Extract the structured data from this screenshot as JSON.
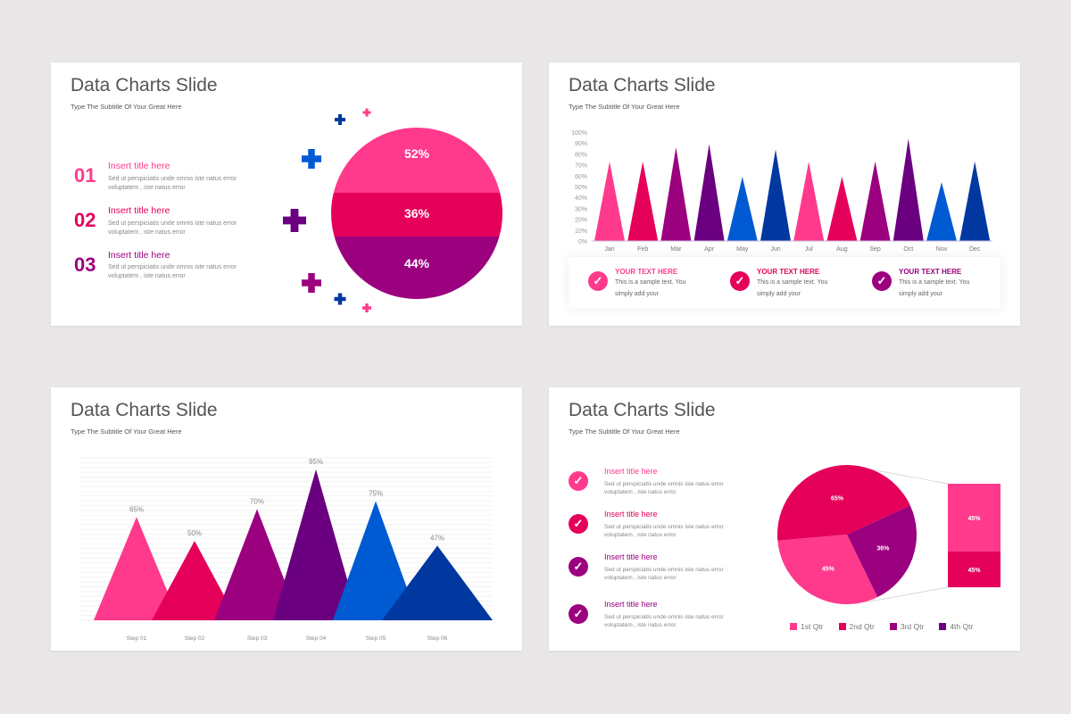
{
  "colors": {
    "pink": "#ff3a8c",
    "crimson": "#e5005a",
    "magenta": "#9b007f",
    "purple": "#6a0080",
    "blue": "#005bd3",
    "navy": "#0038a0"
  },
  "slides": [
    {
      "title": "Data Charts Slide",
      "subtitle": "Type The Subtitle Of Your Great Here",
      "items": [
        {
          "num": "01",
          "title": "Insert title here",
          "desc": "Sed ut perspiciatis unde omnis iste natus error voluptatem , iste natus error"
        },
        {
          "num": "02",
          "title": "Insert title here",
          "desc": "Sed ut perspiciatis unde omnis iste natus error voluptatem , iste natus error"
        },
        {
          "num": "03",
          "title": "Insert title here",
          "desc": "Sed ut perspiciatis unde omnis iste natus error voluptatem , iste natus error"
        }
      ]
    },
    {
      "title": "Data Charts Slide",
      "subtitle": "Type The Subtitle Of Your Great Here",
      "cards": [
        {
          "heading": "YOUR TEXT HERE",
          "text": "This is a sample text. You simply add your"
        },
        {
          "heading": "YOUR TEXT HERE",
          "text": "This is a sample text. You simply add your"
        },
        {
          "heading": "YOUR TEXT HERE",
          "text": "This is a sample text. You simply add your"
        }
      ]
    },
    {
      "title": "Data Charts Slide",
      "subtitle": "Type The Subtitle Of Your Great Here"
    },
    {
      "title": "Data Charts Slide",
      "subtitle": "Type The Subtitle Of Your Great Here",
      "items": [
        {
          "title": "Insert title here",
          "desc": "Sed ut perspiciatis unde omnis iste natus error voluptatem , iste natus error"
        },
        {
          "title": "Insert title here",
          "desc": "Sed ut perspiciatis unde omnis iste natus error voluptatem , iste natus error"
        },
        {
          "title": "Insert title here",
          "desc": "Sed ut perspiciatis unde omnis iste natus error voluptatem , iste natus error"
        },
        {
          "title": "Insert title here",
          "desc": "Sed ut perspiciatis unde omnis iste natus error voluptatem , iste natus error"
        }
      ]
    }
  ],
  "chart_data": [
    {
      "type": "pie",
      "style": "banded circle",
      "labels": [
        "52%",
        "36%",
        "44%"
      ],
      "values": [
        52,
        36,
        44
      ],
      "colors": [
        "#ff3a8c",
        "#e5005a",
        "#9b007f"
      ]
    },
    {
      "type": "bar",
      "style": "triangle",
      "categories": [
        "Jan",
        "Feb",
        "Mar",
        "Apr",
        "May",
        "Jun",
        "Jul",
        "Aug",
        "Sep",
        "Oct",
        "Nov",
        "Dec"
      ],
      "values": [
        73,
        73,
        86,
        89,
        59,
        84,
        73,
        59,
        73,
        94,
        54,
        73
      ],
      "ylim": [
        0,
        100
      ],
      "yticks": [
        "0%",
        "10%",
        "20%",
        "30%",
        "40%",
        "50%",
        "60%",
        "70%",
        "80%",
        "90%",
        "100%"
      ],
      "colors": [
        "#ff3a8c",
        "#e5005a",
        "#9b007f",
        "#6a0080",
        "#005bd3",
        "#0038a0",
        "#ff3a8c",
        "#e5005a",
        "#9b007f",
        "#6a0080",
        "#005bd3",
        "#0038a0"
      ]
    },
    {
      "type": "bar",
      "style": "overlapping triangle",
      "categories": [
        "Step 01",
        "Step 02",
        "Step 03",
        "Step 04",
        "Step 05",
        "Step 06"
      ],
      "values": [
        65,
        50,
        70,
        95,
        75,
        47
      ],
      "labels": [
        "65%",
        "50%",
        "70%",
        "95%",
        "75%",
        "47%"
      ],
      "ylim": [
        0,
        100
      ],
      "grid": true,
      "colors": [
        "#ff3a8c",
        "#e5005a",
        "#9b007f",
        "#6a0080",
        "#005bd3",
        "#0038a0"
      ]
    },
    {
      "type": "pie",
      "style": "bar of pie",
      "slices": [
        {
          "label": "65%",
          "value": 65,
          "color": "#e5005a"
        },
        {
          "label": "36%",
          "value": 36,
          "color": "#9b007f"
        },
        {
          "label": "45%",
          "value": 45,
          "color": "#ff3a8c"
        }
      ],
      "breakout": [
        {
          "label": "45%",
          "value": 45,
          "color": "#ff3a8c"
        },
        {
          "label": "45%",
          "value": 45,
          "color": "#e5005a"
        }
      ],
      "legend": [
        {
          "name": "1st Qtr",
          "color": "#ff3a8c"
        },
        {
          "name": "2nd Qtr",
          "color": "#e5005a"
        },
        {
          "name": "3rd Qtr",
          "color": "#9b007f"
        },
        {
          "name": "4th Qtr",
          "color": "#6a0080"
        }
      ],
      "legend_position": "bottom"
    }
  ]
}
